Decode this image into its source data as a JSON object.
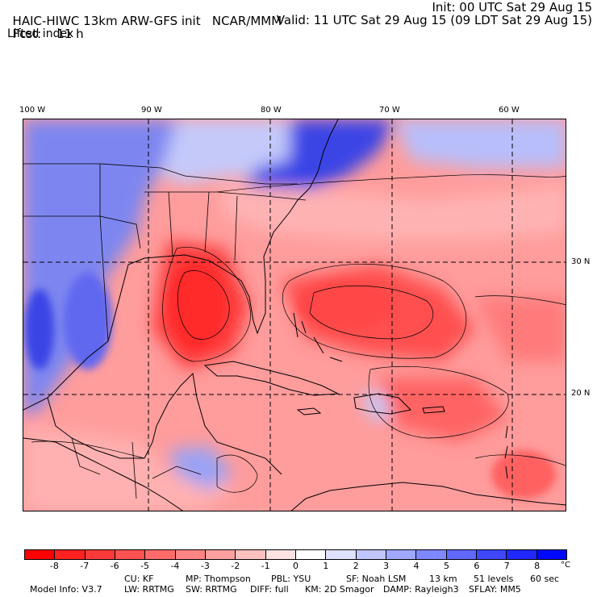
{
  "header": {
    "model": "HAIC-HIWC 13km ARW-GFS init",
    "org": "NCAR/MMM",
    "init": "Init: 00 UTC Sat 29 Aug 15",
    "fcst_label": "Fcst:",
    "fcst_value": "11 h",
    "valid": "Valid: 11 UTC Sat 29 Aug 15 (09 LDT Sat 29 Aug 15)",
    "field": "Lifted index"
  },
  "map": {
    "lon_labels": [
      "100 W",
      "90 W",
      "80 W",
      "70 W",
      "60 W"
    ],
    "lat_labels": [
      "30 N",
      "20 N"
    ]
  },
  "colorbar": {
    "ticks": [
      "-8",
      "-7",
      "-6",
      "-5",
      "-4",
      "-3",
      "-2",
      "-1",
      "0",
      "1",
      "2",
      "3",
      "4",
      "5",
      "6",
      "7",
      "8"
    ],
    "unit": "°C",
    "colors": [
      "#ff0000",
      "#ff2020",
      "#ff3a3a",
      "#ff5252",
      "#ff6a6a",
      "#ff8484",
      "#ffa0a0",
      "#ffc0c0",
      "#ffe2e2",
      "#ffffff",
      "#dfe2ff",
      "#c0c6ff",
      "#a0a8ff",
      "#8088ff",
      "#6068ff",
      "#4048ff",
      "#2028ff",
      "#0008ff"
    ]
  },
  "model_info": {
    "line1": [
      "Model Info: V3.7",
      "CU: KF",
      "MP: Thompson",
      "PBL: YSU",
      "SF: Noah LSM",
      "13 km",
      "51 levels",
      "60 sec"
    ],
    "line2": [
      "LW: RRTMG",
      "SW: RRTMG",
      "DIFF: full",
      "KM: 2D Smagor",
      "DAMP: Rayleigh3",
      "SFLAY: MM5"
    ]
  }
}
